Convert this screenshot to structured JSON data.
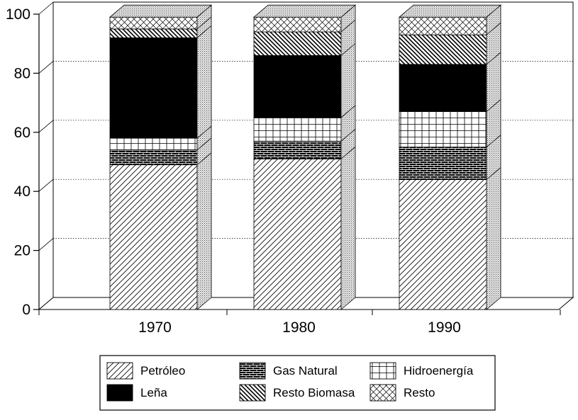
{
  "chart_data": {
    "type": "bar",
    "stacked": true,
    "three_d": true,
    "categories": [
      "1970",
      "1980",
      "1990"
    ],
    "ylim": [
      0,
      100
    ],
    "yticks": [
      "0",
      "20",
      "40",
      "60",
      "80",
      "100"
    ],
    "grid": true,
    "legend_position": "bottom",
    "series": [
      {
        "name": "Petróleo",
        "values": [
          49,
          51,
          44
        ],
        "pattern": "diagonal-fwd"
      },
      {
        "name": "Gas Natural",
        "values": [
          5,
          6,
          11
        ],
        "pattern": "brick"
      },
      {
        "name": "Hidroenergía",
        "values": [
          4,
          8,
          12
        ],
        "pattern": "grid"
      },
      {
        "name": "Leña",
        "values": [
          34,
          21,
          16
        ],
        "pattern": "solid"
      },
      {
        "name": "Resto Biomasa",
        "values": [
          3,
          8,
          10
        ],
        "pattern": "diagonal-back"
      },
      {
        "name": "Resto",
        "values": [
          4,
          5,
          6
        ],
        "pattern": "crosshatch"
      }
    ],
    "legend_order": [
      "Petróleo",
      "Gas Natural",
      "Hidroenergía",
      "Leña",
      "Resto Biomasa",
      "Resto"
    ]
  }
}
